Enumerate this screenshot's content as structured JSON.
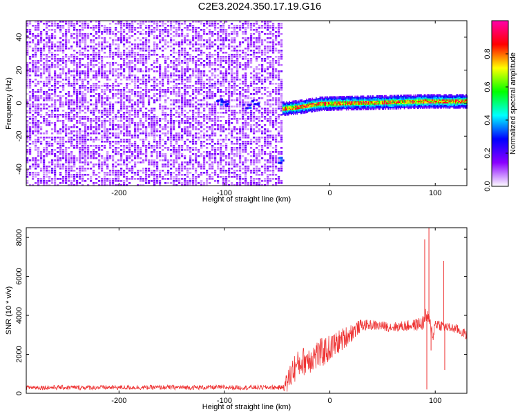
{
  "title": "C2E3.2024.350.17.19.G16",
  "chart_data": [
    {
      "type": "heatmap",
      "xlabel": "Height of straight line (km)",
      "ylabel": "Frequency (Hz)",
      "xlim": [
        -288,
        130
      ],
      "ylim": [
        -50,
        50
      ],
      "x_ticks": [
        -200,
        -100,
        0,
        100
      ],
      "x_tick_labels": [
        "-200",
        "-100",
        "0",
        "100"
      ],
      "y_ticks": [
        -40,
        -20,
        0,
        20,
        40
      ],
      "y_tick_labels": [
        "-40",
        "-20",
        "0",
        "20",
        "40"
      ],
      "colorbar": {
        "label": "Normalized spectral amplitude",
        "range": [
          0,
          1
        ],
        "ticks": [
          0.0,
          0.2,
          0.4,
          0.6,
          0.8
        ],
        "tick_labels": [
          "0.0",
          "0.2",
          "0.4",
          "0.6",
          "0.8"
        ],
        "colors": [
          "#ffffff",
          "#8a00ff",
          "#0000ff",
          "#00ffff",
          "#00ff00",
          "#ffff00",
          "#ff0000",
          "#ff00aa"
        ]
      },
      "noise_region_x": [
        -288,
        -45
      ],
      "signal_band": {
        "x": [
          -45,
          -30,
          -10,
          20,
          60,
          90,
          110,
          130
        ],
        "freq": [
          -3,
          -2,
          0,
          0.5,
          1,
          1.5,
          1.5,
          1.5
        ]
      },
      "grid": false
    },
    {
      "type": "line",
      "xlabel": "Height of straight line (km)",
      "ylabel": "SNR (10 * v/v)",
      "xlim": [
        -288,
        130
      ],
      "ylim": [
        0,
        8500
      ],
      "x_ticks": [
        -200,
        -100,
        0,
        100
      ],
      "x_tick_labels": [
        "-200",
        "-100",
        "0",
        "100"
      ],
      "y_ticks": [
        0,
        2000,
        4000,
        6000,
        8000
      ],
      "y_tick_labels": [
        "0",
        "2000",
        "4000",
        "6000",
        "8000"
      ],
      "color": "#ee3333",
      "envelope": {
        "x": [
          -288,
          -45,
          -40,
          -35,
          -30,
          -20,
          -10,
          0,
          10,
          20,
          30,
          40,
          60,
          80,
          88,
          92,
          95,
          98,
          100,
          105,
          110,
          120,
          130
        ],
        "mean": [
          300,
          300,
          600,
          1200,
          1500,
          1800,
          2000,
          2300,
          2700,
          3100,
          3500,
          3500,
          3400,
          3500,
          3600,
          4000,
          3500,
          3000,
          3600,
          3500,
          3400,
          3300,
          3000
        ],
        "spread": [
          120,
          120,
          600,
          800,
          700,
          800,
          800,
          700,
          600,
          500,
          300,
          250,
          250,
          300,
          400,
          500,
          400,
          400,
          300,
          300,
          250,
          250,
          250
        ]
      },
      "peaks": [
        {
          "x": 90,
          "y": 7900
        },
        {
          "x": 92,
          "y": 200
        },
        {
          "x": 94,
          "y": 8500
        },
        {
          "x": 96,
          "y": 2200
        },
        {
          "x": 108,
          "y": 6800
        },
        {
          "x": 109,
          "y": 1200
        }
      ],
      "grid": false
    }
  ]
}
